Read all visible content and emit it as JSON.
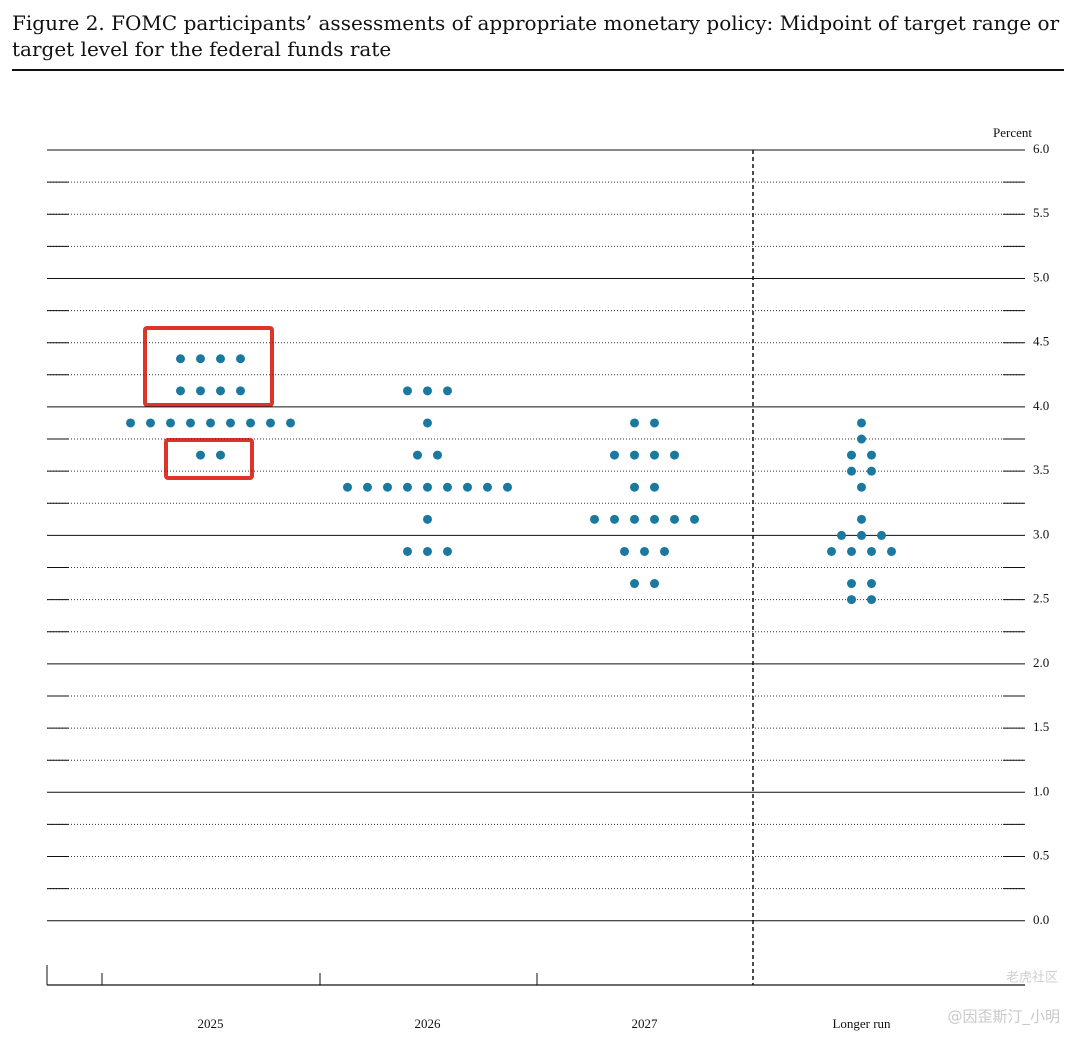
{
  "chart_data": {
    "type": "dot",
    "title": "Figure 2.  FOMC participants’ assessments of appropriate monetary policy: Midpoint of target range or target level for the federal funds rate",
    "y_label": "Percent",
    "categories": [
      "2025",
      "2026",
      "2027",
      "Longer run"
    ],
    "values": [
      [
        4.375,
        4.375,
        4.375,
        4.375,
        4.125,
        4.125,
        4.125,
        4.125,
        3.875,
        3.875,
        3.875,
        3.875,
        3.875,
        3.875,
        3.875,
        3.875,
        3.875,
        3.625,
        3.625
      ],
      [
        4.125,
        4.125,
        4.125,
        3.875,
        3.625,
        3.625,
        3.375,
        3.375,
        3.375,
        3.375,
        3.375,
        3.375,
        3.375,
        3.375,
        3.375,
        3.125,
        2.875,
        2.875,
        2.875
      ],
      [
        3.875,
        3.875,
        3.625,
        3.625,
        3.625,
        3.625,
        3.375,
        3.375,
        3.125,
        3.125,
        3.125,
        3.125,
        3.125,
        3.125,
        2.875,
        2.875,
        2.875,
        2.625,
        2.625
      ],
      [
        3.875,
        3.75,
        3.625,
        3.625,
        3.5,
        3.5,
        3.375,
        3.125,
        3.0,
        3.0,
        3.0,
        2.875,
        2.875,
        2.875,
        2.875,
        2.625,
        2.625,
        2.5,
        2.5
      ]
    ],
    "color": "#1b79a0",
    "ylim": [
      -0.5,
      6.0
    ],
    "yticks": [
      {
        "value": 0,
        "label": "0.0"
      },
      0.5,
      {
        "value": 1,
        "label": "1.0"
      },
      1.5,
      {
        "value": 2,
        "label": "2.0"
      },
      2.5,
      {
        "value": 3,
        "label": "3.0"
      },
      3.5,
      {
        "value": 4,
        "label": "4.0"
      },
      4.5,
      {
        "value": 5,
        "label": "5.0"
      },
      5.5,
      {
        "value": 6,
        "label": "6.0"
      }
    ],
    "minor_yticks": [
      0.25,
      0.75,
      1.25,
      1.75,
      2.25,
      2.75,
      3.25,
      3.75,
      4.25,
      4.75,
      5.25,
      5.75
    ],
    "grid": true,
    "watermark": [
      "老虎社区",
      "@因歪斯汀_小明"
    ]
  }
}
